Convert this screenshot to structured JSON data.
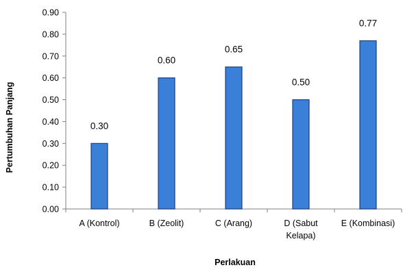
{
  "chart_data": {
    "type": "bar",
    "title": "",
    "xlabel": "Perlakuan",
    "ylabel": "Pertumbuhan Panjang",
    "categories": [
      [
        "A (Kontrol)"
      ],
      [
        "B (Zeolit)"
      ],
      [
        "C (Arang)"
      ],
      [
        "D (Sabut",
        "Kelapa)"
      ],
      [
        "E (Kombinasi)"
      ]
    ],
    "values": [
      0.3,
      0.6,
      0.65,
      0.5,
      0.77
    ],
    "data_labels": [
      "0.30",
      "0.60",
      "0.65",
      "0.50",
      "0.77"
    ],
    "y_ticks": [
      "0.00",
      "0.10",
      "0.20",
      "0.30",
      "0.40",
      "0.50",
      "0.60",
      "0.70",
      "0.80",
      "0.90"
    ],
    "ylim": [
      0,
      0.9
    ],
    "grid": false,
    "legend": "none",
    "colors": {
      "bar_fill": "#3a80d9",
      "bar_stroke": "#1f3f7a",
      "axis": "#7f7f7f"
    }
  }
}
